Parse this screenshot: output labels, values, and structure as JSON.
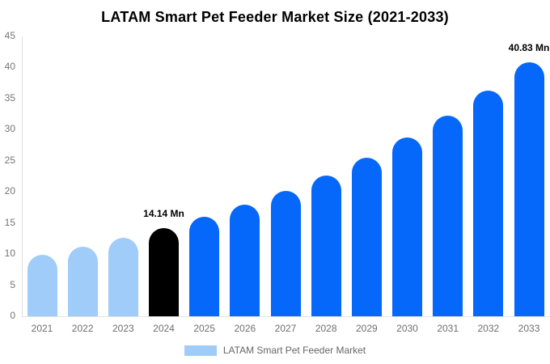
{
  "title": "LATAM Smart Pet Feeder Market Size (2021-2033)",
  "legend": {
    "label": "LATAM Smart Pet Feeder Market",
    "swatch_color": "#A0CCFA"
  },
  "colors": {
    "historical_bar": "#A0CCFA",
    "base_year_bar": "#000000",
    "forecast_bar": "#0667FB",
    "axis_line": "#DBDBDB",
    "baseline": "#E3E3E3",
    "tick_text": "#757575",
    "x_tick_text": "#6E6E6E",
    "data_label_text": "#000000",
    "background": "#FFFFFF"
  },
  "chart_data": {
    "type": "bar",
    "title": "LATAM Smart Pet Feeder Market Size (2021-2033)",
    "xlabel": "",
    "ylabel": "",
    "unit": "Mn",
    "categories": [
      "2021",
      "2022",
      "2023",
      "2024",
      "2025",
      "2026",
      "2027",
      "2028",
      "2029",
      "2030",
      "2031",
      "2032",
      "2033"
    ],
    "series": [
      {
        "name": "LATAM Smart Pet Feeder Market",
        "values": [
          9.93,
          11.17,
          12.57,
          14.14,
          15.91,
          17.9,
          20.13,
          22.65,
          25.48,
          28.66,
          32.24,
          36.27,
          40.83
        ]
      }
    ],
    "bar_colors": [
      "#A0CCFA",
      "#A0CCFA",
      "#A0CCFA",
      "#000000",
      "#0667FB",
      "#0667FB",
      "#0667FB",
      "#0667FB",
      "#0667FB",
      "#0667FB",
      "#0667FB",
      "#0667FB",
      "#0667FB"
    ],
    "annotations": [
      {
        "category": "2024",
        "text": "14.14 Mn"
      },
      {
        "category": "2033",
        "text": "40.83 Mn"
      }
    ],
    "ylim": [
      0,
      45
    ],
    "yticks": [
      0,
      5,
      10,
      15,
      20,
      25,
      30,
      35,
      40,
      45
    ],
    "grid": false,
    "legend_position": "bottom"
  }
}
